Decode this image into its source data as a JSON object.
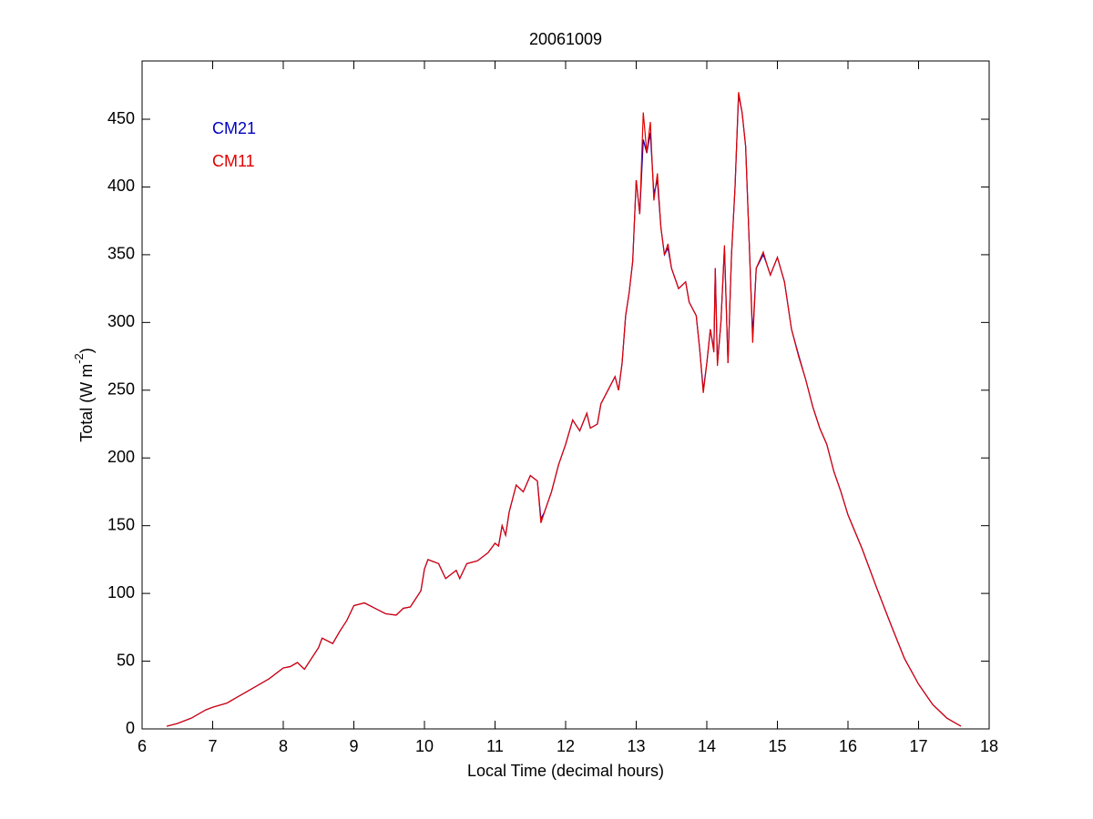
{
  "chart_data": {
    "type": "line",
    "title": "20061009",
    "xlabel": "Local Time (decimal hours)",
    "ylabel": [
      "Total (W m",
      "-2",
      ")"
    ],
    "x": [
      6.35,
      6.5,
      6.7,
      6.9,
      7.0,
      7.2,
      7.4,
      7.6,
      7.8,
      8.0,
      8.1,
      8.2,
      8.3,
      8.4,
      8.5,
      8.55,
      8.7,
      8.8,
      8.9,
      9.0,
      9.15,
      9.3,
      9.45,
      9.6,
      9.7,
      9.8,
      9.95,
      10.0,
      10.05,
      10.2,
      10.3,
      10.45,
      10.5,
      10.6,
      10.75,
      10.9,
      11.0,
      11.05,
      11.1,
      11.15,
      11.2,
      11.3,
      11.4,
      11.5,
      11.6,
      11.65,
      11.7,
      11.8,
      11.9,
      12.0,
      12.1,
      12.2,
      12.3,
      12.35,
      12.45,
      12.5,
      12.6,
      12.7,
      12.75,
      12.8,
      12.85,
      12.9,
      12.95,
      13.0,
      13.05,
      13.1,
      13.15,
      13.2,
      13.25,
      13.3,
      13.35,
      13.4,
      13.45,
      13.5,
      13.6,
      13.7,
      13.75,
      13.85,
      13.9,
      13.95,
      14.0,
      14.05,
      14.1,
      14.12,
      14.15,
      14.2,
      14.25,
      14.3,
      14.35,
      14.4,
      14.45,
      14.5,
      14.55,
      14.6,
      14.65,
      14.7,
      14.8,
      14.85,
      14.9,
      15.0,
      15.1,
      15.2,
      15.3,
      15.4,
      15.5,
      15.6,
      15.7,
      15.8,
      15.9,
      16.0,
      16.2,
      16.4,
      16.6,
      16.8,
      17.0,
      17.2,
      17.4,
      17.6
    ],
    "series": [
      {
        "name": "CM21",
        "color": "#0000c0",
        "values": [
          2,
          4,
          8,
          14,
          16,
          19,
          25,
          31,
          37,
          45,
          46,
          49,
          44,
          52,
          60,
          67,
          63,
          72,
          80,
          91,
          93,
          89,
          85,
          84,
          89,
          90,
          102,
          118,
          125,
          122,
          111,
          117,
          111,
          122,
          124,
          130,
          137,
          135,
          150,
          143,
          160,
          180,
          175,
          187,
          183,
          155,
          160,
          175,
          195,
          210,
          228,
          220,
          233,
          222,
          225,
          240,
          250,
          260,
          250,
          270,
          305,
          322,
          345,
          405,
          380,
          435,
          425,
          440,
          395,
          405,
          370,
          350,
          355,
          340,
          325,
          330,
          315,
          305,
          280,
          250,
          270,
          295,
          280,
          340,
          270,
          300,
          355,
          270,
          350,
          400,
          468,
          455,
          430,
          360,
          290,
          340,
          350,
          343,
          335,
          348,
          330,
          295,
          276,
          258,
          238,
          222,
          210,
          190,
          175,
          158,
          133,
          105,
          78,
          52,
          33,
          18,
          8,
          2
        ]
      },
      {
        "name": "CM11",
        "color": "#e00000",
        "values": [
          2,
          4,
          8,
          14,
          16,
          19,
          25,
          31,
          37,
          45,
          46,
          49,
          44,
          52,
          60,
          67,
          63,
          72,
          80,
          91,
          93,
          89,
          85,
          84,
          89,
          90,
          102,
          118,
          125,
          122,
          111,
          117,
          111,
          122,
          124,
          130,
          137,
          135,
          150,
          143,
          160,
          180,
          175,
          187,
          183,
          152,
          160,
          175,
          195,
          210,
          228,
          220,
          233,
          222,
          225,
          240,
          250,
          260,
          250,
          270,
          305,
          322,
          345,
          405,
          380,
          455,
          425,
          448,
          390,
          410,
          370,
          350,
          358,
          340,
          325,
          330,
          315,
          305,
          280,
          248,
          270,
          295,
          278,
          340,
          268,
          300,
          357,
          270,
          350,
          400,
          470,
          455,
          430,
          360,
          285,
          340,
          352,
          343,
          335,
          348,
          330,
          295,
          275,
          258,
          238,
          222,
          210,
          190,
          175,
          158,
          133,
          105,
          78,
          52,
          33,
          18,
          8,
          2
        ]
      }
    ],
    "xlim": [
      6,
      18
    ],
    "xticks": [
      6,
      7,
      8,
      9,
      10,
      11,
      12,
      13,
      14,
      15,
      16,
      17,
      18
    ],
    "ylim": [
      0,
      493
    ],
    "yticks": [
      0,
      50,
      100,
      150,
      200,
      250,
      300,
      350,
      400,
      450
    ],
    "legend": "upper left",
    "grid": false
  }
}
